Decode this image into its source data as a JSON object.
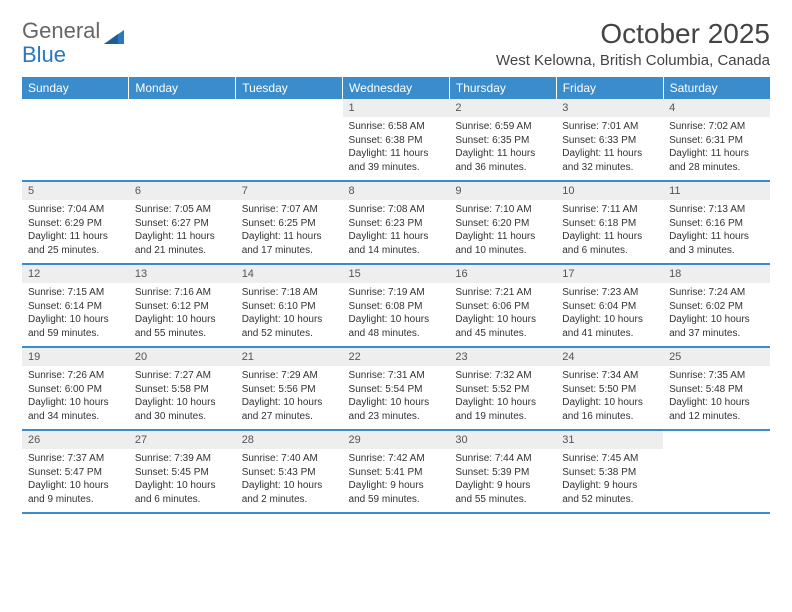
{
  "logo": {
    "text1": "General",
    "text2": "Blue"
  },
  "title": "October 2025",
  "location": "West Kelowna, British Columbia, Canada",
  "colors": {
    "header_bg": "#3b8ccb",
    "header_text": "#ffffff",
    "daynum_bg": "#eeeeee",
    "border": "#3b8ccb",
    "logo_blue": "#2978c0"
  },
  "weekdays": [
    "Sunday",
    "Monday",
    "Tuesday",
    "Wednesday",
    "Thursday",
    "Friday",
    "Saturday"
  ],
  "weeks": [
    [
      null,
      null,
      null,
      {
        "n": "1",
        "sr": "Sunrise: 6:58 AM",
        "ss": "Sunset: 6:38 PM",
        "d1": "Daylight: 11 hours",
        "d2": "and 39 minutes."
      },
      {
        "n": "2",
        "sr": "Sunrise: 6:59 AM",
        "ss": "Sunset: 6:35 PM",
        "d1": "Daylight: 11 hours",
        "d2": "and 36 minutes."
      },
      {
        "n": "3",
        "sr": "Sunrise: 7:01 AM",
        "ss": "Sunset: 6:33 PM",
        "d1": "Daylight: 11 hours",
        "d2": "and 32 minutes."
      },
      {
        "n": "4",
        "sr": "Sunrise: 7:02 AM",
        "ss": "Sunset: 6:31 PM",
        "d1": "Daylight: 11 hours",
        "d2": "and 28 minutes."
      }
    ],
    [
      {
        "n": "5",
        "sr": "Sunrise: 7:04 AM",
        "ss": "Sunset: 6:29 PM",
        "d1": "Daylight: 11 hours",
        "d2": "and 25 minutes."
      },
      {
        "n": "6",
        "sr": "Sunrise: 7:05 AM",
        "ss": "Sunset: 6:27 PM",
        "d1": "Daylight: 11 hours",
        "d2": "and 21 minutes."
      },
      {
        "n": "7",
        "sr": "Sunrise: 7:07 AM",
        "ss": "Sunset: 6:25 PM",
        "d1": "Daylight: 11 hours",
        "d2": "and 17 minutes."
      },
      {
        "n": "8",
        "sr": "Sunrise: 7:08 AM",
        "ss": "Sunset: 6:23 PM",
        "d1": "Daylight: 11 hours",
        "d2": "and 14 minutes."
      },
      {
        "n": "9",
        "sr": "Sunrise: 7:10 AM",
        "ss": "Sunset: 6:20 PM",
        "d1": "Daylight: 11 hours",
        "d2": "and 10 minutes."
      },
      {
        "n": "10",
        "sr": "Sunrise: 7:11 AM",
        "ss": "Sunset: 6:18 PM",
        "d1": "Daylight: 11 hours",
        "d2": "and 6 minutes."
      },
      {
        "n": "11",
        "sr": "Sunrise: 7:13 AM",
        "ss": "Sunset: 6:16 PM",
        "d1": "Daylight: 11 hours",
        "d2": "and 3 minutes."
      }
    ],
    [
      {
        "n": "12",
        "sr": "Sunrise: 7:15 AM",
        "ss": "Sunset: 6:14 PM",
        "d1": "Daylight: 10 hours",
        "d2": "and 59 minutes."
      },
      {
        "n": "13",
        "sr": "Sunrise: 7:16 AM",
        "ss": "Sunset: 6:12 PM",
        "d1": "Daylight: 10 hours",
        "d2": "and 55 minutes."
      },
      {
        "n": "14",
        "sr": "Sunrise: 7:18 AM",
        "ss": "Sunset: 6:10 PM",
        "d1": "Daylight: 10 hours",
        "d2": "and 52 minutes."
      },
      {
        "n": "15",
        "sr": "Sunrise: 7:19 AM",
        "ss": "Sunset: 6:08 PM",
        "d1": "Daylight: 10 hours",
        "d2": "and 48 minutes."
      },
      {
        "n": "16",
        "sr": "Sunrise: 7:21 AM",
        "ss": "Sunset: 6:06 PM",
        "d1": "Daylight: 10 hours",
        "d2": "and 45 minutes."
      },
      {
        "n": "17",
        "sr": "Sunrise: 7:23 AM",
        "ss": "Sunset: 6:04 PM",
        "d1": "Daylight: 10 hours",
        "d2": "and 41 minutes."
      },
      {
        "n": "18",
        "sr": "Sunrise: 7:24 AM",
        "ss": "Sunset: 6:02 PM",
        "d1": "Daylight: 10 hours",
        "d2": "and 37 minutes."
      }
    ],
    [
      {
        "n": "19",
        "sr": "Sunrise: 7:26 AM",
        "ss": "Sunset: 6:00 PM",
        "d1": "Daylight: 10 hours",
        "d2": "and 34 minutes."
      },
      {
        "n": "20",
        "sr": "Sunrise: 7:27 AM",
        "ss": "Sunset: 5:58 PM",
        "d1": "Daylight: 10 hours",
        "d2": "and 30 minutes."
      },
      {
        "n": "21",
        "sr": "Sunrise: 7:29 AM",
        "ss": "Sunset: 5:56 PM",
        "d1": "Daylight: 10 hours",
        "d2": "and 27 minutes."
      },
      {
        "n": "22",
        "sr": "Sunrise: 7:31 AM",
        "ss": "Sunset: 5:54 PM",
        "d1": "Daylight: 10 hours",
        "d2": "and 23 minutes."
      },
      {
        "n": "23",
        "sr": "Sunrise: 7:32 AM",
        "ss": "Sunset: 5:52 PM",
        "d1": "Daylight: 10 hours",
        "d2": "and 19 minutes."
      },
      {
        "n": "24",
        "sr": "Sunrise: 7:34 AM",
        "ss": "Sunset: 5:50 PM",
        "d1": "Daylight: 10 hours",
        "d2": "and 16 minutes."
      },
      {
        "n": "25",
        "sr": "Sunrise: 7:35 AM",
        "ss": "Sunset: 5:48 PM",
        "d1": "Daylight: 10 hours",
        "d2": "and 12 minutes."
      }
    ],
    [
      {
        "n": "26",
        "sr": "Sunrise: 7:37 AM",
        "ss": "Sunset: 5:47 PM",
        "d1": "Daylight: 10 hours",
        "d2": "and 9 minutes."
      },
      {
        "n": "27",
        "sr": "Sunrise: 7:39 AM",
        "ss": "Sunset: 5:45 PM",
        "d1": "Daylight: 10 hours",
        "d2": "and 6 minutes."
      },
      {
        "n": "28",
        "sr": "Sunrise: 7:40 AM",
        "ss": "Sunset: 5:43 PM",
        "d1": "Daylight: 10 hours",
        "d2": "and 2 minutes."
      },
      {
        "n": "29",
        "sr": "Sunrise: 7:42 AM",
        "ss": "Sunset: 5:41 PM",
        "d1": "Daylight: 9 hours",
        "d2": "and 59 minutes."
      },
      {
        "n": "30",
        "sr": "Sunrise: 7:44 AM",
        "ss": "Sunset: 5:39 PM",
        "d1": "Daylight: 9 hours",
        "d2": "and 55 minutes."
      },
      {
        "n": "31",
        "sr": "Sunrise: 7:45 AM",
        "ss": "Sunset: 5:38 PM",
        "d1": "Daylight: 9 hours",
        "d2": "and 52 minutes."
      },
      null
    ]
  ]
}
